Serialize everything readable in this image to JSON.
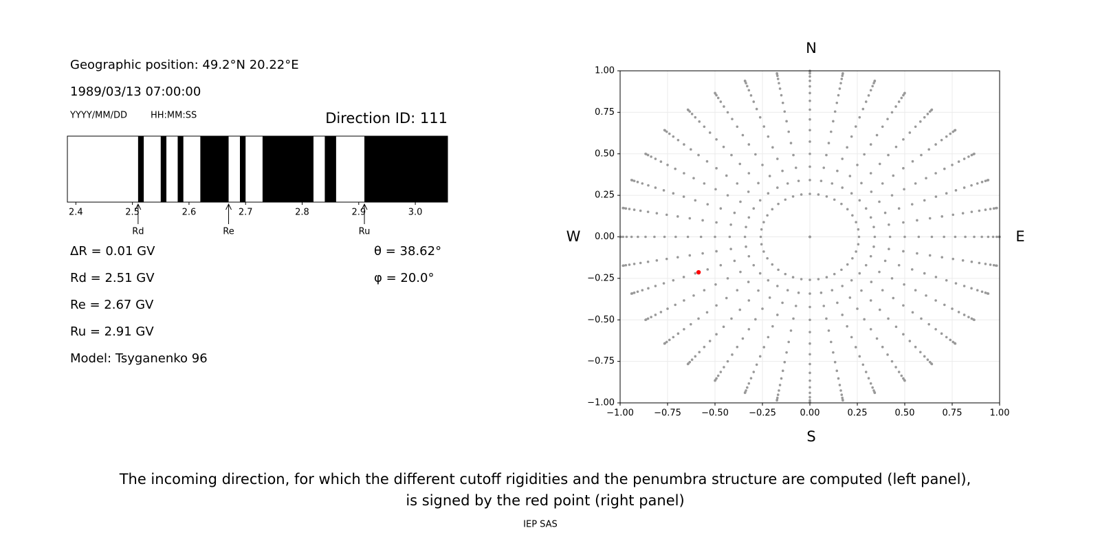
{
  "left_panel": {
    "position": "Geographic position: 49.2°N 20.22°E",
    "datetime": "1989/03/13 07:00:00",
    "date_format": "YYYY/MM/DD",
    "time_format": "HH:MM:SS",
    "direction_id": "Direction ID: 111",
    "rigidity_axis": {
      "xlim": [
        2.385,
        3.057
      ],
      "xticks": [
        2.4,
        2.5,
        2.6,
        2.7,
        2.8,
        2.9,
        {
          "value": 3,
          "label": "3.0"
        }
      ]
    },
    "forbidden": [
      [
        2.51,
        2.52
      ],
      [
        2.55,
        2.56
      ],
      [
        2.58,
        2.59
      ],
      [
        2.62,
        2.67
      ],
      [
        2.69,
        2.7
      ],
      [
        2.73,
        2.82
      ],
      [
        2.84,
        2.86
      ],
      [
        2.91,
        3.057
      ]
    ],
    "cutoffs": [
      {
        "name": "Rd",
        "value": 2.51,
        "label": "Rd = 2.51 GV"
      },
      {
        "name": "Re",
        "value": 2.67,
        "label": "Re = 2.67 GV"
      },
      {
        "name": "Ru",
        "value": 2.91,
        "label": "Ru = 2.91 GV"
      }
    ],
    "delta_r": {
      "value": 0.01,
      "label": "ΔR = 0.01 GV"
    },
    "model": "Model: Tsyganenko 96",
    "theta": {
      "value": 38.62,
      "label": "θ = 38.62°"
    },
    "phi": {
      "value": 20.0,
      "label": "φ = 20.0°"
    }
  },
  "right_panel": {
    "type": "scatter",
    "north": "N",
    "south": "S",
    "west": "W",
    "east": "E",
    "xlim": [
      -1,
      1
    ],
    "ylim": [
      -1,
      1
    ],
    "xticks": [
      {
        "value": -1,
        "label": "−1.00"
      },
      {
        "value": -0.75,
        "label": "−0.75"
      },
      {
        "value": -0.5,
        "label": "−0.50"
      },
      {
        "value": -0.25,
        "label": "−0.25"
      },
      {
        "value": 0,
        "label": "0.00"
      },
      {
        "value": 0.25,
        "label": "0.25"
      },
      {
        "value": 0.5,
        "label": "0.50"
      },
      {
        "value": 0.75,
        "label": "0.75"
      },
      {
        "value": 1,
        "label": "1.00"
      }
    ],
    "yticks": [
      {
        "value": -1,
        "label": "−1.00"
      },
      {
        "value": -0.75,
        "label": "−0.75"
      },
      {
        "value": -0.5,
        "label": "−0.50"
      },
      {
        "value": -0.25,
        "label": "−0.25"
      },
      {
        "value": 0,
        "label": "0.00"
      },
      {
        "value": 0.25,
        "label": "0.25"
      },
      {
        "value": 0.5,
        "label": "0.50"
      },
      {
        "value": 0.75,
        "label": "0.75"
      },
      {
        "value": 1,
        "label": "1.00"
      }
    ],
    "grid": true,
    "grid_color": "#999999",
    "point_color": "#ff0000",
    "directions": {
      "theta": [
        0,
        15,
        20,
        25,
        30,
        35,
        40,
        45,
        50,
        55,
        60,
        65,
        70,
        75,
        80,
        85,
        90
      ],
      "phi": [
        0,
        10,
        20,
        30,
        40,
        50,
        60,
        70,
        80,
        90,
        100,
        110,
        120,
        130,
        140,
        150,
        160,
        170,
        180,
        190,
        200,
        210,
        220,
        230,
        240,
        250,
        260,
        270,
        280,
        290,
        300,
        310,
        320,
        330,
        340,
        350
      ]
    }
  },
  "caption": [
    "The incoming direction, for which the different cutoff rigidities and the penumbra structure are computed (left panel),",
    "is signed by the red point (right panel)"
  ],
  "footer": "IEP SAS"
}
